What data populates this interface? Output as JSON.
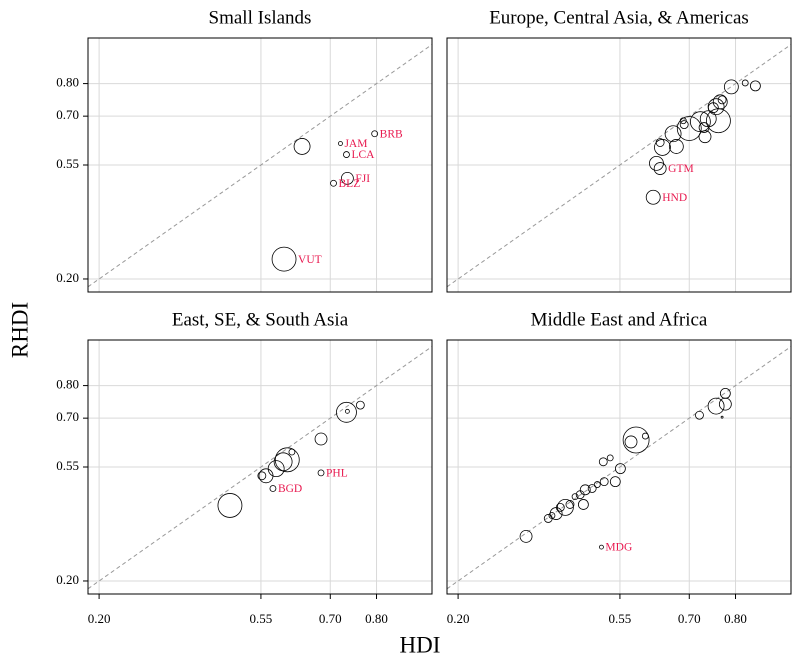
{
  "chart_data": {
    "type": "scatter-grid",
    "xlabel": "HDI",
    "ylabel": "RHDI",
    "xlim": [
      0.176,
      0.92
    ],
    "ylim": [
      0.16,
      0.94
    ],
    "xticks": [
      {
        "value": 0.2,
        "label": "0.20"
      },
      0.55,
      {
        "value": 0.7,
        "label": "0.70"
      },
      {
        "value": 0.8,
        "label": "0.80"
      }
    ],
    "yticks": [
      {
        "value": 0.2,
        "label": "0.20"
      },
      0.55,
      {
        "value": 0.7,
        "label": "0.70"
      },
      {
        "value": 0.8,
        "label": "0.80"
      }
    ],
    "grid": true,
    "diagonal": true,
    "marker_color": "#000000",
    "label_color": "#e8194f",
    "panels": [
      {
        "title": "Small Islands",
        "x": [
          0.796,
          0.722,
          0.735,
          0.639,
          0.737,
          0.707,
          0.6
        ],
        "y": [
          0.646,
          0.616,
          0.582,
          0.607,
          0.509,
          0.494,
          0.261
        ],
        "sizes": [
          3,
          2,
          3,
          8,
          6,
          3,
          12
        ],
        "labels": [
          "BRB",
          "JAM",
          "LCA",
          null,
          "FJI",
          "BLZ",
          "VUT"
        ]
      },
      {
        "title": "Europe, Central Asia, & Americas",
        "x": [
          0.843,
          0.821,
          0.791,
          0.767,
          0.771,
          0.758,
          0.752,
          0.763,
          0.741,
          0.732,
          0.724,
          0.734,
          0.7,
          0.687,
          0.689,
          0.665,
          0.672,
          0.642,
          0.637,
          0.629,
          0.637,
          0.622
        ],
        "y": [
          0.793,
          0.802,
          0.79,
          0.744,
          0.75,
          0.729,
          0.726,
          0.686,
          0.692,
          0.665,
          0.683,
          0.637,
          0.662,
          0.686,
          0.674,
          0.646,
          0.607,
          0.604,
          0.619,
          0.555,
          0.539,
          0.451
        ],
        "sizes": [
          5,
          3,
          7,
          7,
          4,
          8,
          5,
          12,
          8,
          5,
          10,
          6,
          12,
          3,
          4,
          8,
          7,
          8,
          4,
          7,
          6,
          7
        ],
        "labels": [
          null,
          null,
          null,
          null,
          null,
          null,
          null,
          null,
          null,
          null,
          null,
          null,
          null,
          null,
          null,
          null,
          null,
          null,
          null,
          null,
          "GTM",
          "HND"
        ]
      },
      {
        "title": "East, SE, & South Asia",
        "x": [
          0.765,
          0.735,
          0.737,
          0.68,
          0.617,
          0.607,
          0.598,
          0.583,
          0.561,
          0.552,
          0.68,
          0.576,
          0.483
        ],
        "y": [
          0.74,
          0.718,
          0.721,
          0.636,
          0.596,
          0.572,
          0.566,
          0.545,
          0.523,
          0.523,
          0.532,
          0.484,
          0.432
        ],
        "sizes": [
          4,
          10,
          2,
          6,
          3,
          12,
          9,
          8,
          7,
          4,
          3,
          3,
          12
        ],
        "labels": [
          null,
          null,
          null,
          null,
          null,
          null,
          null,
          null,
          null,
          null,
          "PHL",
          "BGD",
          null
        ]
      },
      {
        "title": "Middle East and Africa",
        "x": [
          0.778,
          0.778,
          0.758,
          0.771,
          0.722,
          0.605,
          0.585,
          0.574,
          0.529,
          0.514,
          0.551,
          0.54,
          0.516,
          0.501,
          0.49,
          0.475,
          0.464,
          0.453,
          0.471,
          0.442,
          0.432,
          0.421,
          0.412,
          0.403,
          0.395,
          0.347,
          0.51
        ],
        "y": [
          0.776,
          0.743,
          0.737,
          0.703,
          0.709,
          0.645,
          0.633,
          0.627,
          0.578,
          0.566,
          0.545,
          0.505,
          0.505,
          0.496,
          0.484,
          0.48,
          0.465,
          0.459,
          0.435,
          0.435,
          0.426,
          0.426,
          0.407,
          0.401,
          0.392,
          0.337,
          0.304
        ],
        "sizes": [
          5,
          6,
          8,
          1,
          4,
          3,
          13,
          6,
          3,
          4,
          5,
          5,
          4,
          3,
          4,
          5,
          4,
          3,
          5,
          4,
          8,
          4,
          6,
          3,
          4,
          6,
          2
        ],
        "labels": [
          null,
          null,
          null,
          null,
          null,
          null,
          null,
          null,
          null,
          null,
          null,
          null,
          null,
          null,
          null,
          null,
          null,
          null,
          null,
          null,
          null,
          null,
          null,
          null,
          null,
          null,
          "MDG"
        ]
      }
    ]
  }
}
